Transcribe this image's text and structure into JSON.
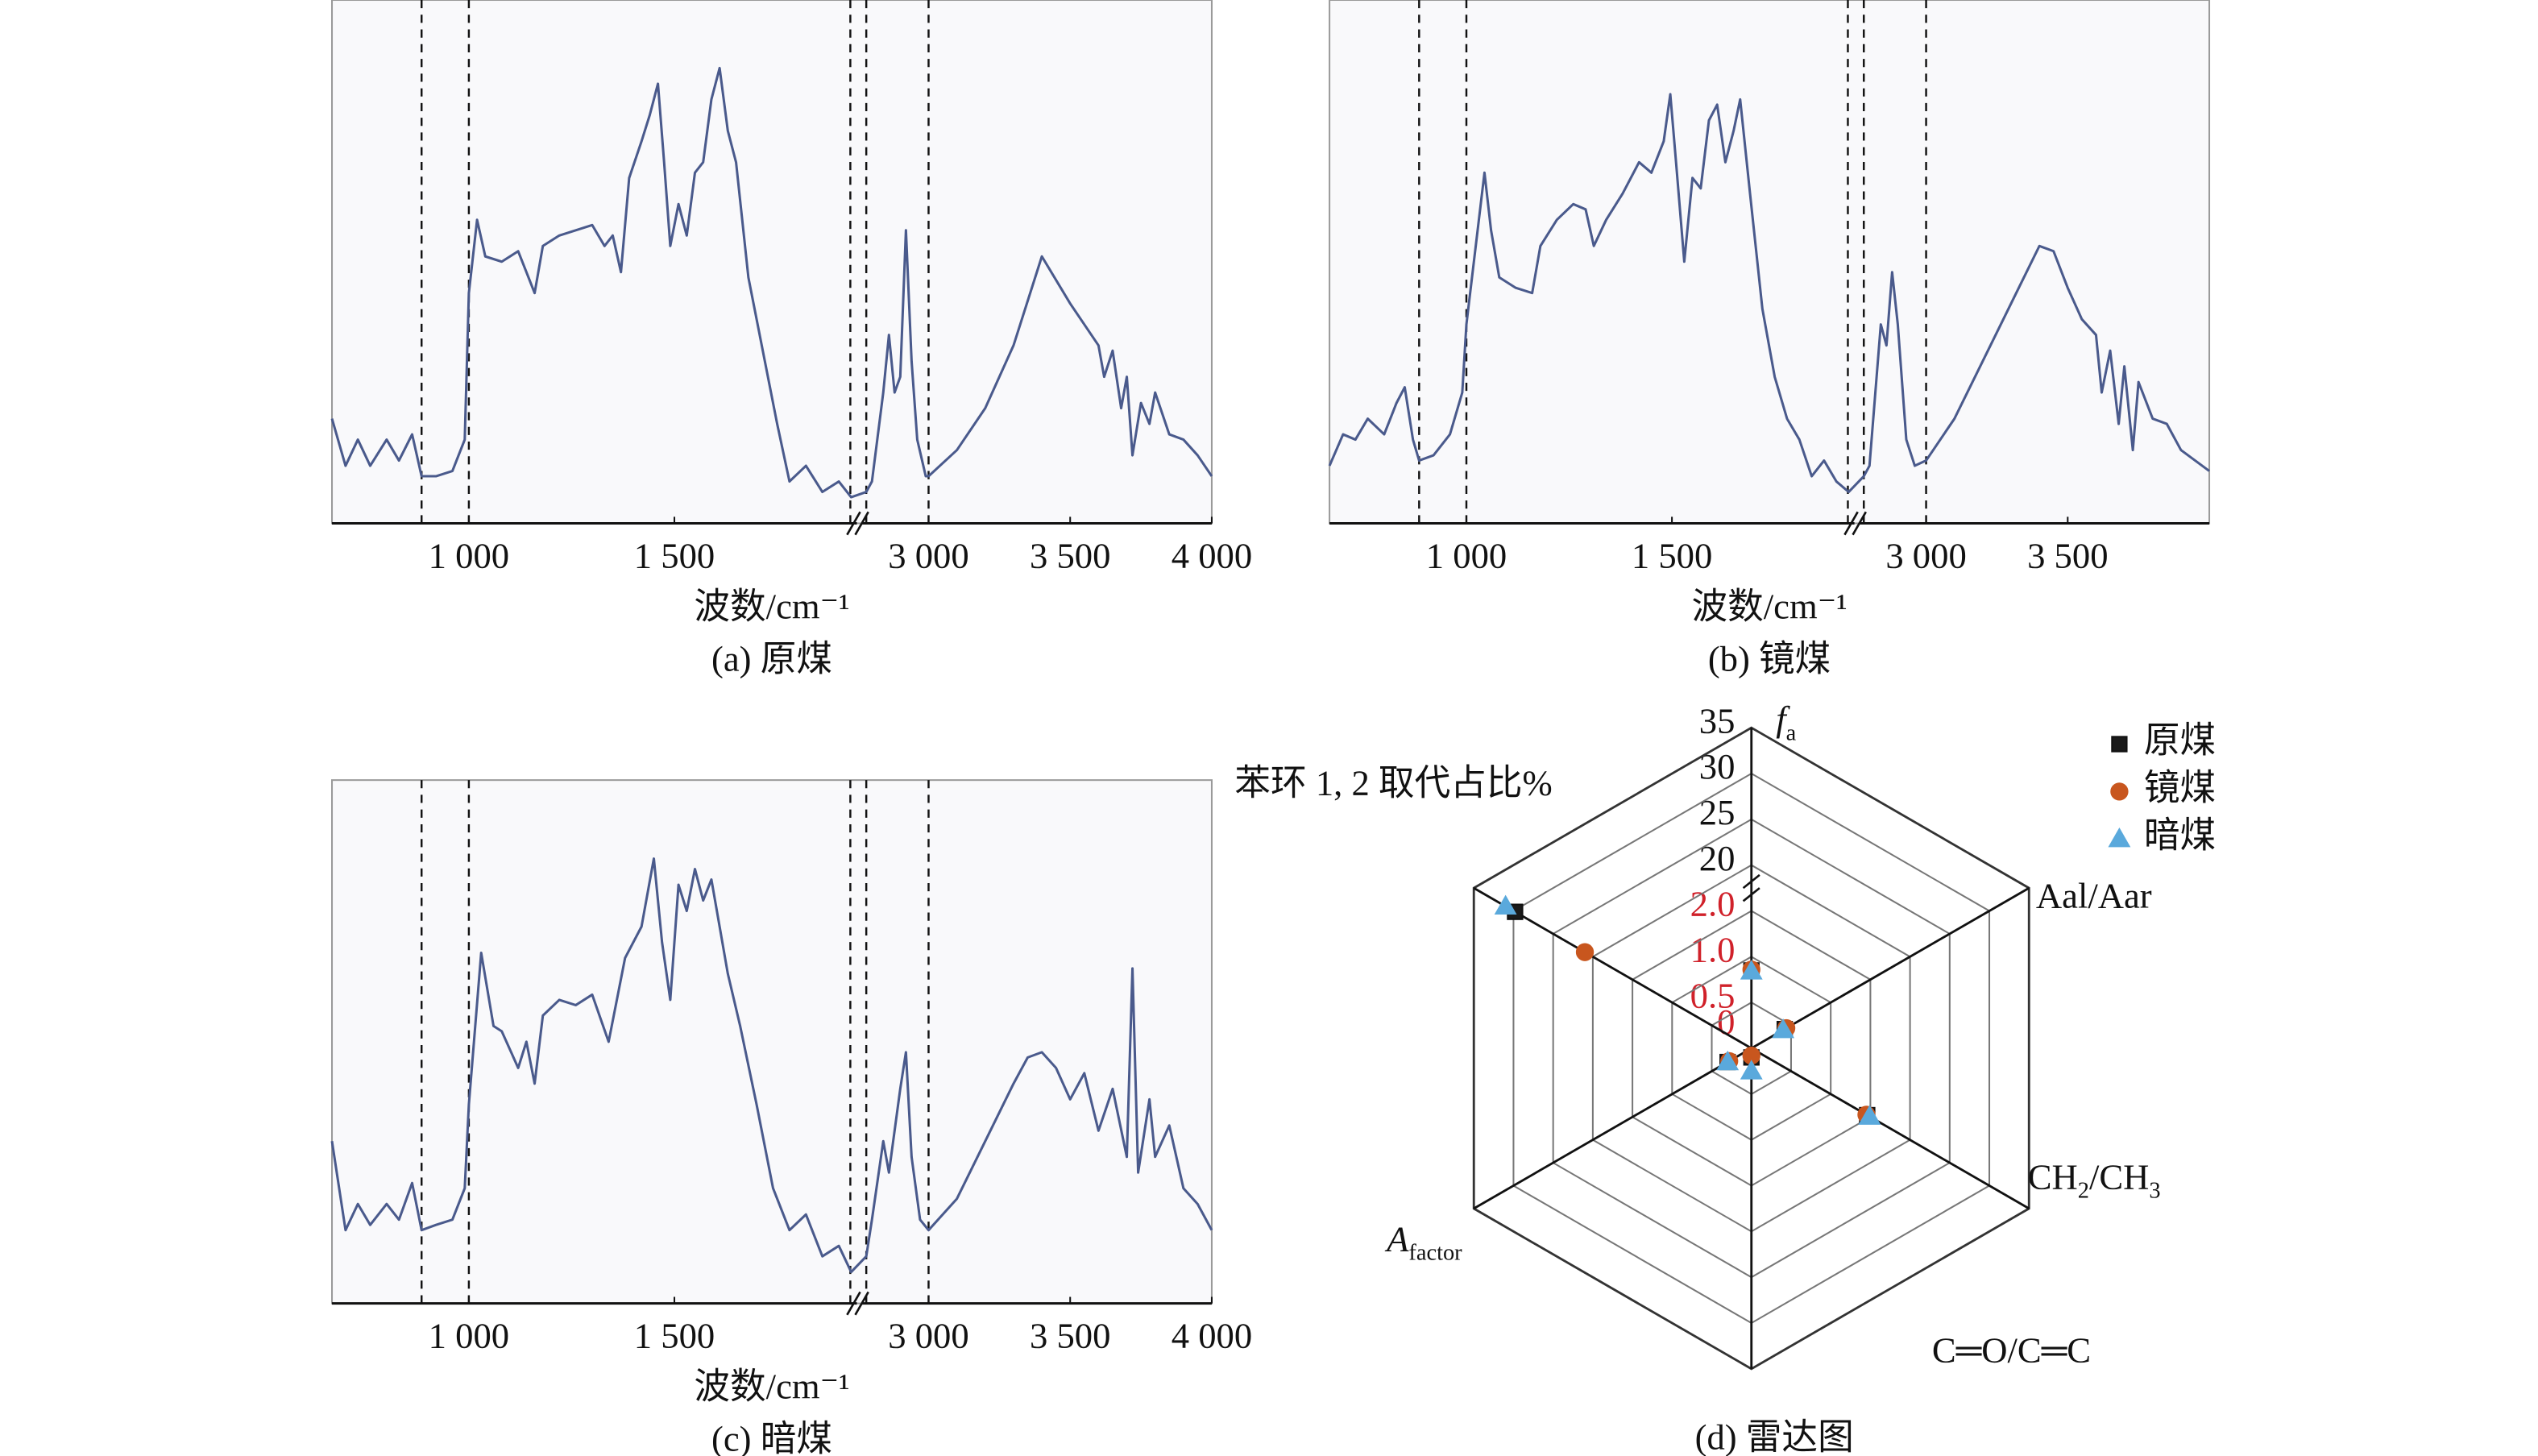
{
  "chart_data": [
    {
      "type": "line",
      "caption": "(a) 原煤",
      "xlabel": "波数/cm⁻¹",
      "color": "#4a5a8c",
      "xlim": [
        667,
        4000
      ],
      "xbreak": [
        1940,
        2770
      ],
      "ylim": [
        0,
        100
      ],
      "xticks": [
        {
          "value": 1000,
          "label": "1 000"
        },
        {
          "value": 1500,
          "label": "1 500"
        },
        {
          "value": 3000,
          "label": "3 000"
        },
        {
          "value": 3500,
          "label": "3 500"
        },
        {
          "value": 4000,
          "label": "4 000"
        }
      ],
      "vlines": [
        885,
        1000,
        1928,
        2780,
        3000
      ],
      "x": [
        667,
        700,
        730,
        760,
        800,
        830,
        862,
        885,
        920,
        960,
        990,
        1000,
        1020,
        1040,
        1080,
        1120,
        1140,
        1160,
        1180,
        1220,
        1260,
        1300,
        1330,
        1350,
        1370,
        1390,
        1420,
        1440,
        1460,
        1475,
        1490,
        1510,
        1530,
        1550,
        1570,
        1590,
        1610,
        1630,
        1650,
        1680,
        1720,
        1750,
        1780,
        1820,
        1860,
        1900,
        1930,
        2780,
        2800,
        2840,
        2860,
        2880,
        2900,
        2920,
        2940,
        2960,
        2990,
        3000,
        3100,
        3200,
        3300,
        3400,
        3500,
        3550,
        3600,
        3620,
        3650,
        3680,
        3700,
        3720,
        3750,
        3780,
        3800,
        3850,
        3900,
        3950,
        4000
      ],
      "values": [
        20,
        11,
        16,
        11,
        16,
        12,
        17,
        9,
        9,
        10,
        16,
        44,
        58,
        51,
        50,
        52,
        48,
        44,
        53,
        55,
        56,
        57,
        53,
        55,
        48,
        66,
        73,
        78,
        84,
        69,
        53,
        61,
        55,
        67,
        69,
        81,
        87,
        75,
        69,
        47,
        31,
        19,
        8,
        11,
        6,
        8,
        5,
        6,
        8,
        25,
        36,
        25,
        28,
        56,
        31,
        16,
        9,
        9,
        14,
        22,
        34,
        51,
        42,
        38,
        34,
        28,
        33,
        22,
        28,
        13,
        23,
        19,
        25,
        17,
        16,
        13,
        9
      ]
    },
    {
      "type": "line",
      "caption": "(b) 镜煤",
      "xlabel": "波数/cm⁻¹",
      "color": "#4a5a8c",
      "xlim": [
        667,
        4000
      ],
      "xbreak": [
        1940,
        2770
      ],
      "ylim": [
        0,
        100
      ],
      "xticks": [
        {
          "value": 1000,
          "label": "1 000"
        },
        {
          "value": 1500,
          "label": "1 500"
        },
        {
          "value": 3000,
          "label": "3 000"
        },
        {
          "value": 3500,
          "label": "3 500"
        }
      ],
      "vlines": [
        885,
        1000,
        1928,
        2780,
        3000
      ],
      "x": [
        667,
        700,
        730,
        760,
        800,
        830,
        850,
        870,
        885,
        920,
        960,
        990,
        1000,
        1044,
        1060,
        1080,
        1120,
        1160,
        1180,
        1220,
        1260,
        1290,
        1310,
        1340,
        1380,
        1420,
        1450,
        1480,
        1496,
        1510,
        1530,
        1550,
        1570,
        1590,
        1610,
        1630,
        1650,
        1666,
        1690,
        1720,
        1750,
        1780,
        1810,
        1840,
        1870,
        1900,
        1930,
        2780,
        2800,
        2840,
        2860,
        2880,
        2900,
        2930,
        2960,
        3000,
        3100,
        3200,
        3300,
        3400,
        3450,
        3500,
        3550,
        3600,
        3620,
        3650,
        3680,
        3700,
        3730,
        3750,
        3800,
        3850,
        3900,
        3950,
        4000
      ],
      "values": [
        11,
        17,
        16,
        20,
        17,
        23,
        26,
        16,
        12,
        13,
        17,
        25,
        38,
        67,
        56,
        47,
        45,
        44,
        53,
        58,
        61,
        60,
        53,
        58,
        63,
        69,
        67,
        73,
        82,
        69,
        50,
        66,
        64,
        77,
        80,
        69,
        75,
        81,
        63,
        41,
        28,
        20,
        16,
        9,
        12,
        8,
        6,
        9,
        11,
        38,
        34,
        48,
        38,
        16,
        11,
        12,
        20,
        31,
        42,
        53,
        52,
        45,
        39,
        36,
        25,
        33,
        19,
        30,
        14,
        27,
        20,
        19,
        14,
        12,
        10
      ]
    },
    {
      "type": "line",
      "caption": "(c) 暗煤",
      "xlabel": "波数/cm⁻¹",
      "color": "#4a5a8c",
      "xlim": [
        667,
        4000
      ],
      "xbreak": [
        1940,
        2770
      ],
      "ylim": [
        0,
        100
      ],
      "xticks": [
        {
          "value": 1000,
          "label": "1 000"
        },
        {
          "value": 1500,
          "label": "1 500"
        },
        {
          "value": 3000,
          "label": "3 000"
        },
        {
          "value": 3500,
          "label": "3 500"
        },
        {
          "value": 4000,
          "label": "4 000"
        }
      ],
      "vlines": [
        885,
        1000,
        1928,
        2780,
        3000
      ],
      "x": [
        667,
        700,
        730,
        760,
        800,
        830,
        862,
        885,
        920,
        960,
        990,
        1000,
        1030,
        1060,
        1080,
        1120,
        1140,
        1160,
        1180,
        1220,
        1260,
        1300,
        1340,
        1380,
        1420,
        1450,
        1470,
        1490,
        1510,
        1530,
        1550,
        1570,
        1590,
        1610,
        1630,
        1660,
        1700,
        1740,
        1780,
        1820,
        1860,
        1900,
        1930,
        2780,
        2800,
        2840,
        2860,
        2900,
        2920,
        2940,
        2970,
        3000,
        3100,
        3200,
        3300,
        3350,
        3400,
        3450,
        3500,
        3550,
        3600,
        3650,
        3700,
        3720,
        3740,
        3780,
        3800,
        3850,
        3900,
        3950,
        4000
      ],
      "values": [
        31,
        14,
        19,
        15,
        19,
        16,
        23,
        14,
        15,
        16,
        22,
        38,
        67,
        53,
        52,
        45,
        50,
        42,
        55,
        58,
        57,
        59,
        50,
        66,
        72,
        85,
        69,
        58,
        80,
        75,
        83,
        77,
        81,
        72,
        63,
        53,
        38,
        22,
        14,
        17,
        9,
        11,
        6,
        9,
        16,
        31,
        25,
        41,
        48,
        28,
        16,
        14,
        20,
        31,
        42,
        47,
        48,
        45,
        39,
        44,
        33,
        41,
        28,
        64,
        25,
        39,
        28,
        34,
        22,
        19,
        14
      ]
    },
    {
      "type": "radar",
      "caption": "(d) 雷达图",
      "axes": [
        [
          {
            "text": "f",
            "style": "italic"
          },
          {
            "text": "a",
            "style": "sub"
          }
        ],
        [
          {
            "text": "Aal/Aar"
          }
        ],
        [
          {
            "text": "CH"
          },
          {
            "text": "2",
            "style": "sub"
          },
          {
            "text": "/CH"
          },
          {
            "text": "3",
            "style": "sub"
          }
        ],
        [
          {
            "text": "C═O/C═C"
          }
        ],
        [
          {
            "text": "A",
            "style": "italic"
          },
          {
            "text": "factor",
            "style": "sub"
          }
        ],
        [
          {
            "text": "苯环 1, 2 取代占比%"
          }
        ]
      ],
      "rticks": [
        0,
        0.5,
        {
          "value": 1,
          "label": "1.0"
        },
        {
          "value": 2,
          "label": "2.0"
        },
        20,
        25,
        30,
        35
      ],
      "rbreak": [
        2,
        20
      ],
      "low_tick_color": "#d0212a",
      "legend": "upper right",
      "series": [
        {
          "name": "原煤",
          "color": "#1a1a1a",
          "marker": "square",
          "values": [
            0.85,
            0.42,
            1.92,
            0.1,
            0.3,
            29.8
          ]
        },
        {
          "name": "镜煤",
          "color": "#c8561e",
          "marker": "circle",
          "values": [
            0.86,
            0.44,
            1.9,
            0.08,
            0.28,
            21
          ]
        },
        {
          "name": "暗煤",
          "color": "#5aa9dc",
          "marker": "triangle",
          "values": [
            0.84,
            0.4,
            1.98,
            0.25,
            0.3,
            31
          ]
        }
      ]
    }
  ]
}
